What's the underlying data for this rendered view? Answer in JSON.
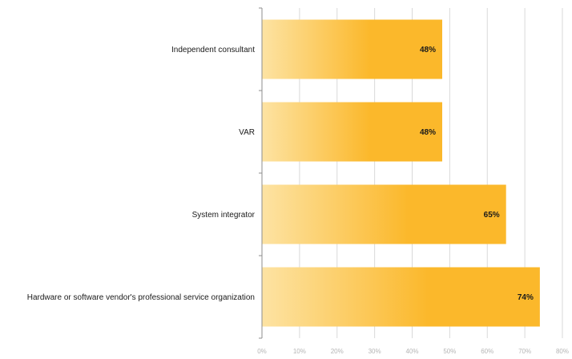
{
  "chart_data": {
    "type": "bar",
    "orientation": "horizontal",
    "categories": [
      "Independent consultant",
      "VAR",
      "System integrator",
      "Hardware or software vendor's professional service organization"
    ],
    "values": [
      48,
      48,
      65,
      74
    ],
    "value_labels": [
      "48%",
      "48%",
      "65%",
      "74%"
    ],
    "xlim": [
      0,
      80
    ],
    "x_ticks": [
      0,
      10,
      20,
      30,
      40,
      50,
      60,
      70,
      80
    ],
    "x_tick_labels": [
      "0%",
      "10%",
      "20%",
      "30%",
      "40%",
      "50%",
      "60%",
      "70%",
      "80%"
    ],
    "grid": "vertical",
    "legend": "none",
    "title": "",
    "xlabel": "",
    "ylabel": "",
    "colors": {
      "bar_light": "#fde3a3",
      "bar_dark": "#fbb82b",
      "grid": "#d9d9d9",
      "axis": "#8c8c8c",
      "tick_text": "#b5b5b5",
      "text": "#1a1a1a"
    }
  }
}
